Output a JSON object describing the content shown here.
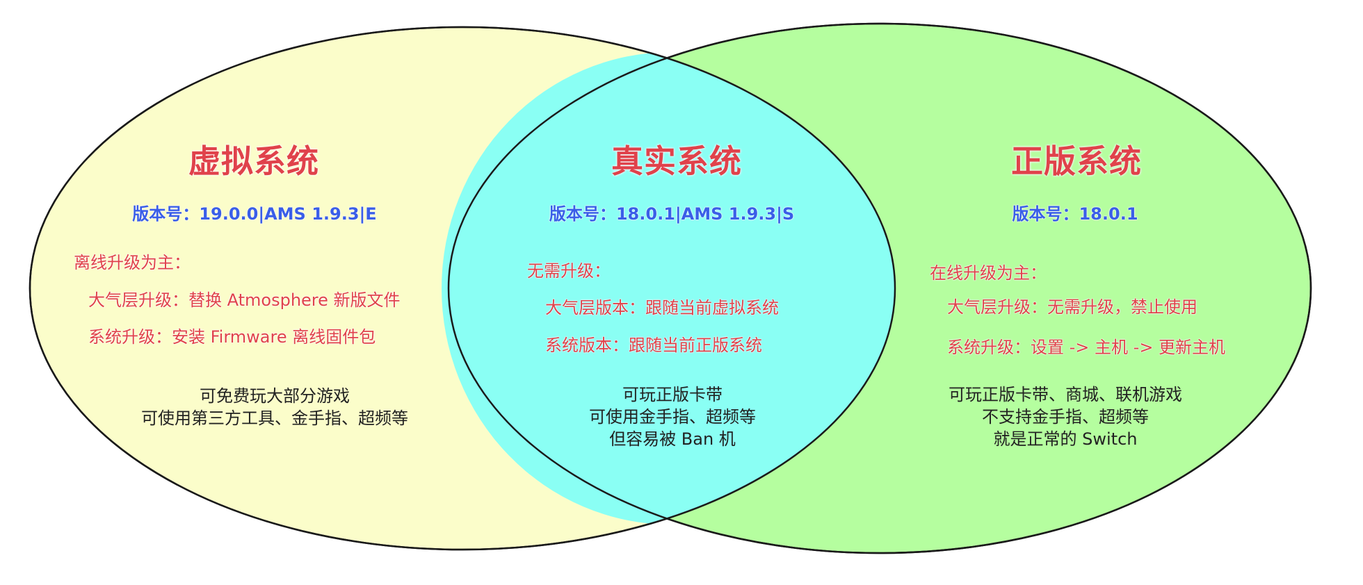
{
  "colors": {
    "left_fill": "#fbfdca",
    "right_fill": "#b5fe9f",
    "middle_fill": "#8afff4",
    "title": "#e0424b",
    "version": "#3a5ee8",
    "feature": "#e0424b",
    "desc": "#222222",
    "outline": "#1a1a1a"
  },
  "virtual": {
    "title": "虚拟系统",
    "version": "版本号：19.0.0|AMS 1.9.3|E",
    "heading": "离线升级为主：",
    "line1": "大气层升级：替换 Atmosphere 新版文件",
    "line2": "系统升级：安装 Firmware 离线固件包",
    "desc1": "可免费玩大部分游戏",
    "desc2": "可使用第三方工具、金手指、超频等"
  },
  "real": {
    "title": "真实系统",
    "version": "版本号：18.0.1|AMS 1.9.3|S",
    "heading": "无需升级：",
    "line1": "大气层版本：跟随当前虚拟系统",
    "line2": "系统版本：跟随当前正版系统",
    "desc1": "可玩正版卡带",
    "desc2": "可使用金手指、超频等",
    "desc3": "但容易被 Ban 机"
  },
  "official": {
    "title": "正版系统",
    "version": "版本号：18.0.1",
    "heading": "在线升级为主：",
    "line1": "大气层升级：无需升级，禁止使用",
    "line2": "系统升级：设置 -> 主机 -> 更新主机",
    "desc1": "可玩正版卡带、商城、联机游戏",
    "desc2": "不支持金手指、超频等",
    "desc3": "就是正常的 Switch"
  }
}
